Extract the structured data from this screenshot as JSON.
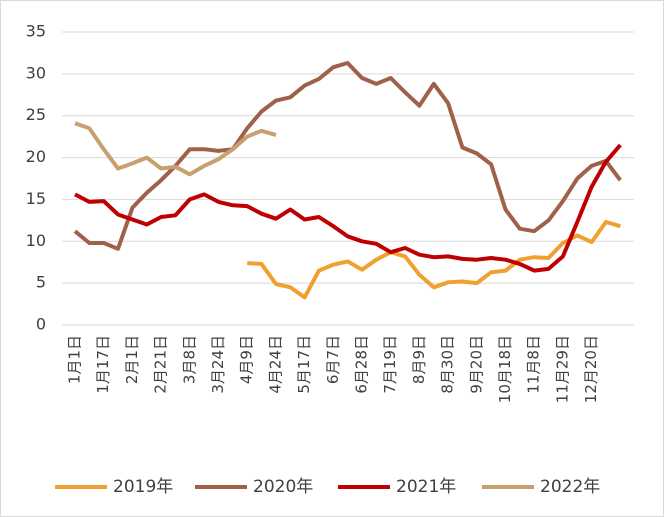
{
  "chart_data": {
    "type": "line",
    "categories": [
      "1月1日",
      null,
      "1月17日",
      null,
      "2月1日",
      null,
      "2月21日",
      null,
      "3月8日",
      null,
      "3月24日",
      null,
      "4月9日",
      null,
      "4月24日",
      null,
      "5月17日",
      null,
      "6月7日",
      null,
      "6月28日",
      null,
      "7月19日",
      null,
      "8月9日",
      null,
      "8月30日",
      null,
      "9月20日",
      null,
      "10月18日",
      null,
      "11月8日",
      null,
      "11月29日",
      null,
      "12月20日",
      null,
      null
    ],
    "series": [
      {
        "name": "2019年",
        "color": "#f0a030",
        "values": [
          null,
          null,
          null,
          null,
          null,
          null,
          null,
          null,
          null,
          null,
          null,
          null,
          7.4,
          7.3,
          4.9,
          4.5,
          3.3,
          6.5,
          7.2,
          7.6,
          6.6,
          7.8,
          8.7,
          8.2,
          6.0,
          4.5,
          5.1,
          5.2,
          5.0,
          6.3,
          6.5,
          7.8,
          8.1,
          8.0,
          9.8,
          10.7,
          9.9,
          12.3,
          11.8
        ]
      },
      {
        "name": "2020年",
        "color": "#a0614a",
        "values": [
          11.2,
          9.8,
          9.8,
          9.1,
          14.0,
          15.8,
          17.3,
          19.0,
          21.0,
          21.0,
          20.8,
          21.0,
          23.5,
          25.5,
          26.8,
          27.2,
          28.6,
          29.4,
          30.8,
          31.3,
          29.5,
          28.8,
          29.5,
          27.8,
          26.2,
          28.8,
          26.5,
          21.2,
          20.5,
          19.2,
          13.8,
          11.5,
          11.2,
          12.5,
          14.8,
          17.5,
          19.0,
          19.6,
          17.3
        ]
      },
      {
        "name": "2021年",
        "color": "#c00000",
        "values": [
          15.6,
          14.7,
          14.8,
          13.2,
          12.6,
          12.0,
          12.9,
          13.1,
          15.0,
          15.6,
          14.7,
          14.3,
          14.2,
          13.3,
          12.7,
          13.8,
          12.6,
          12.9,
          11.8,
          10.6,
          10.0,
          9.7,
          8.7,
          9.2,
          8.4,
          8.1,
          8.2,
          7.9,
          7.8,
          8.0,
          7.8,
          7.3,
          6.5,
          6.7,
          8.2,
          12.3,
          16.5,
          19.5,
          21.5
        ]
      },
      {
        "name": "2022年",
        "color": "#c8a070",
        "values": [
          24.1,
          23.5,
          21.0,
          18.7,
          19.3,
          20.0,
          18.7,
          18.9,
          18.0,
          19.0,
          19.8,
          21.0,
          22.5,
          23.2,
          22.7,
          null,
          null,
          null,
          null,
          null,
          null,
          null,
          null,
          null,
          null,
          null,
          null,
          null,
          null,
          null,
          null,
          null,
          null,
          null,
          null,
          null,
          null,
          null,
          null
        ]
      }
    ],
    "ylim": [
      0,
      35
    ],
    "yticks": [
      0,
      5,
      10,
      15,
      20,
      25,
      30,
      35
    ],
    "grid": true
  }
}
